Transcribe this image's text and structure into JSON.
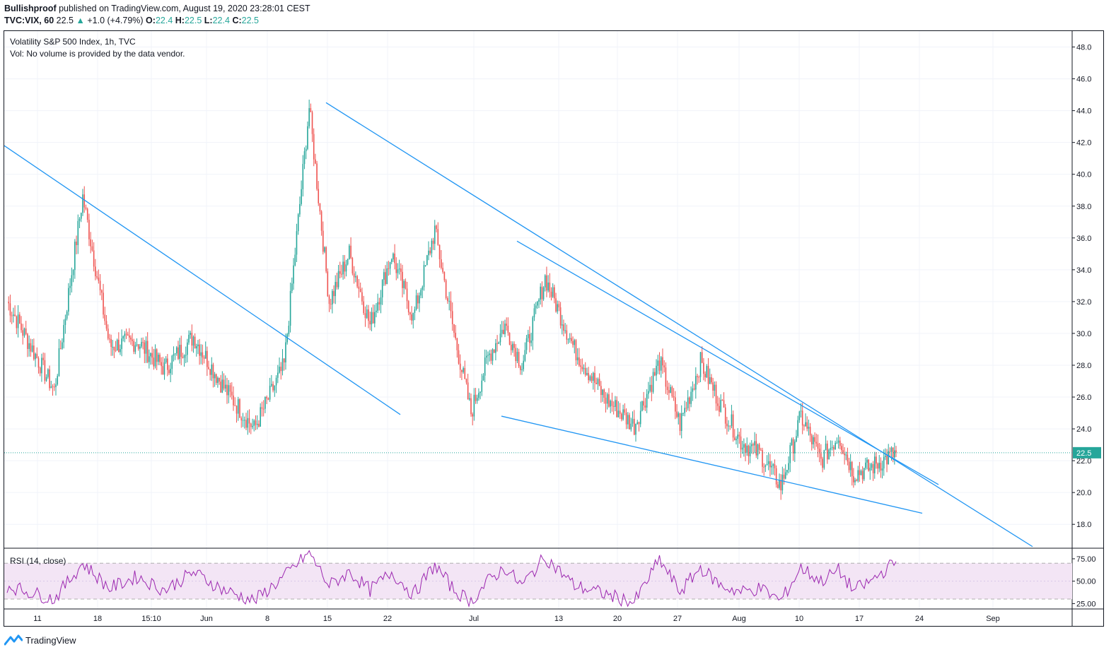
{
  "header": {
    "author": "Bullishproof",
    "published": "published on TradingView.com, August 19, 2020 23:28:01 CEST",
    "symbol": "TVC:VIX, 60",
    "last": "22.5",
    "change": "+1.0 (+4.79%)",
    "o_label": "O:",
    "o_value": "22.4",
    "h_label": "H:",
    "h_value": "22.5",
    "l_label": "L:",
    "l_value": "22.4",
    "c_label": "C:",
    "c_value": "22.5"
  },
  "legend": {
    "title": "Volatility S&P 500 Index, 1h, TVC",
    "volume_note": "Vol: No volume is provided by the data vendor.",
    "rsi": "RSI (14, close)"
  },
  "footer": {
    "brand": "TradingView"
  },
  "colors": {
    "up": "#26a69a",
    "down": "#ef5350",
    "trendline": "#2196f3",
    "rsi_line": "#9c27b0",
    "rsi_band": "#f3e5f5",
    "price_line": "#26a69a",
    "price_label_bg": "#26a69a"
  },
  "chart_data": {
    "type": "candlestick",
    "price_axis": {
      "ylim": [
        16.5,
        49.0
      ],
      "ticks": [
        "18.0",
        "20.0",
        "22.0",
        "24.0",
        "26.0",
        "28.0",
        "30.0",
        "32.0",
        "34.0",
        "36.0",
        "38.0",
        "40.0",
        "42.0",
        "44.0",
        "46.0",
        "48.0"
      ],
      "current_price_label": "22.5"
    },
    "rsi_axis": {
      "ylim": [
        19,
        86
      ],
      "ticks": [
        "25.00",
        "50.00",
        "75.00"
      ],
      "band": [
        30,
        70
      ]
    },
    "time_axis": {
      "labels": [
        "11",
        "18",
        "15:10",
        "Jun",
        "8",
        "15",
        "22",
        "Jul",
        "13",
        "20",
        "27",
        "Aug",
        "10",
        "17",
        "24",
        "Sep"
      ]
    },
    "price_path": [
      {
        "t": "11",
        "close": 32.0
      },
      {
        "t": "11",
        "close": 26.4
      },
      {
        "t": "18",
        "close": 38.6
      },
      {
        "t": "18",
        "close": 29.2
      },
      {
        "t": "15:10",
        "close": 29.5
      },
      {
        "t": "15:10",
        "close": 27.8
      },
      {
        "t": "Jun",
        "close": 29.8
      },
      {
        "t": "Jun",
        "close": 26.6
      },
      {
        "t": "8",
        "close": 24.0
      },
      {
        "t": "8",
        "close": 28.0
      },
      {
        "t": "15",
        "close": 44.2
      },
      {
        "t": "15",
        "close": 32.0
      },
      {
        "t": "15",
        "close": 35.0
      },
      {
        "t": "22",
        "close": 30.5
      },
      {
        "t": "22",
        "close": 35.0
      },
      {
        "t": "22",
        "close": 31.0
      },
      {
        "t": "22",
        "close": 36.5
      },
      {
        "t": "Jul",
        "close": 30.0
      },
      {
        "t": "Jul",
        "close": 25.0
      },
      {
        "t": "Jul",
        "close": 28.5
      },
      {
        "t": "Jul",
        "close": 30.5
      },
      {
        "t": "Jul",
        "close": 28.0
      },
      {
        "t": "13",
        "close": 33.5
      },
      {
        "t": "13",
        "close": 29.0
      },
      {
        "t": "20",
        "close": 26.0
      },
      {
        "t": "20",
        "close": 24.2
      },
      {
        "t": "27",
        "close": 28.2
      },
      {
        "t": "27",
        "close": 24.3
      },
      {
        "t": "27",
        "close": 28.2
      },
      {
        "t": "Aug",
        "close": 25.5
      },
      {
        "t": "Aug",
        "close": 23.2
      },
      {
        "t": "Aug",
        "close": 22.4
      },
      {
        "t": "10",
        "close": 20.4
      },
      {
        "t": "10",
        "close": 24.8
      },
      {
        "t": "10",
        "close": 22.0
      },
      {
        "t": "17",
        "close": 23.6
      },
      {
        "t": "17",
        "close": 21.2
      },
      {
        "t": "17",
        "close": 21.5
      },
      {
        "t": "17",
        "close": 22.5
      }
    ],
    "rsi_path": [
      {
        "t": "11",
        "rsi": 45
      },
      {
        "t": "11",
        "rsi": 30
      },
      {
        "t": "18",
        "rsi": 70
      },
      {
        "t": "18",
        "rsi": 42
      },
      {
        "t": "15:10",
        "rsi": 55
      },
      {
        "t": "15:10",
        "rsi": 40
      },
      {
        "t": "Jun",
        "rsi": 60
      },
      {
        "t": "Jun",
        "rsi": 40
      },
      {
        "t": "8",
        "rsi": 28
      },
      {
        "t": "8",
        "rsi": 55
      },
      {
        "t": "15",
        "rsi": 82
      },
      {
        "t": "15",
        "rsi": 45
      },
      {
        "t": "15",
        "rsi": 60
      },
      {
        "t": "22",
        "rsi": 40
      },
      {
        "t": "22",
        "rsi": 60
      },
      {
        "t": "22",
        "rsi": 35
      },
      {
        "t": "22",
        "rsi": 68
      },
      {
        "t": "Jul",
        "rsi": 40
      },
      {
        "t": "Jul",
        "rsi": 27
      },
      {
        "t": "Jul",
        "rsi": 50
      },
      {
        "t": "Jul",
        "rsi": 65
      },
      {
        "t": "Jul",
        "rsi": 45
      },
      {
        "t": "13",
        "rsi": 77
      },
      {
        "t": "13",
        "rsi": 45
      },
      {
        "t": "20",
        "rsi": 36
      },
      {
        "t": "20",
        "rsi": 26
      },
      {
        "t": "27",
        "rsi": 74
      },
      {
        "t": "27",
        "rsi": 38
      },
      {
        "t": "27",
        "rsi": 65
      },
      {
        "t": "Aug",
        "rsi": 45
      },
      {
        "t": "Aug",
        "rsi": 38
      },
      {
        "t": "Aug",
        "rsi": 42
      },
      {
        "t": "10",
        "rsi": 28
      },
      {
        "t": "10",
        "rsi": 65
      },
      {
        "t": "10",
        "rsi": 50
      },
      {
        "t": "17",
        "rsi": 62
      },
      {
        "t": "17",
        "rsi": 40
      },
      {
        "t": "17",
        "rsi": 48
      },
      {
        "t": "17",
        "rsi": 72
      }
    ],
    "trendlines": [
      {
        "name": "trendline-1",
        "from": {
          "t": "before 11",
          "price": 41.8
        },
        "to": {
          "t": "22",
          "price": 24.9
        }
      },
      {
        "name": "trendline-2",
        "from": {
          "t": "15",
          "price": 44.5
        },
        "to": {
          "t": "after 24",
          "price": 16.6
        }
      },
      {
        "name": "trendline-3",
        "from": {
          "t": "Jul",
          "price": 35.8
        },
        "to": {
          "t": "24",
          "price": 20.5
        }
      },
      {
        "name": "trendline-4",
        "from": {
          "t": "Jul",
          "price": 24.8
        },
        "to": {
          "t": "24",
          "price": 18.7
        }
      }
    ]
  }
}
